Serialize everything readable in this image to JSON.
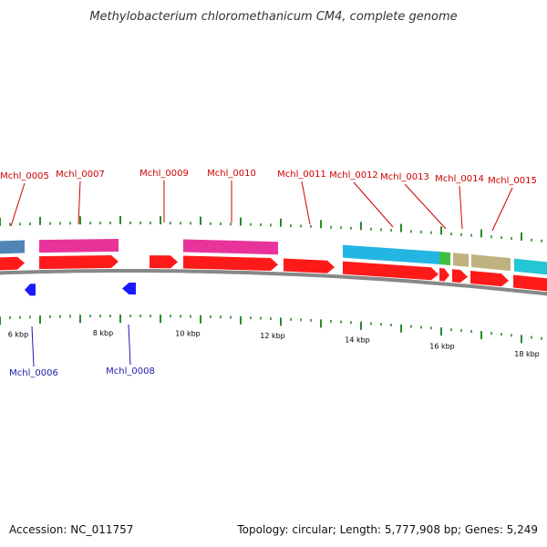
{
  "title": "Methylobacterium chloromethanicum CM4, complete genome",
  "accession_text": "Accession: NC_011757",
  "summary_text": "Topology: circular; Length: 5,777,908 bp; Genes: 5,249",
  "colors": {
    "forward_label": "#cc0000",
    "reverse_label": "#1a1aaa",
    "cds": "#ff1a1a",
    "reverse_cds": "#1a1aff",
    "backbone": "#888888",
    "tick": "#2a8a2a"
  },
  "scale_labels": [
    "6 kbp",
    "8 kbp",
    "10 kbp",
    "12 kbp",
    "14 kbp",
    "16 kbp",
    "18 kbp"
  ],
  "genes": [
    {
      "name": "Mchl_0005",
      "strand": "+",
      "category_color": "#4f86b5"
    },
    {
      "name": "Mchl_0006",
      "strand": "-",
      "category_color": ""
    },
    {
      "name": "Mchl_0007",
      "strand": "+",
      "category_color": "#e8349a"
    },
    {
      "name": "Mchl_0008",
      "strand": "-",
      "category_color": ""
    },
    {
      "name": "Mchl_0009",
      "strand": "+",
      "category_color": ""
    },
    {
      "name": "Mchl_0010",
      "strand": "+",
      "category_color": "#e8349a"
    },
    {
      "name": "Mchl_0011",
      "strand": "+",
      "category_color": ""
    },
    {
      "name": "Mchl_0012",
      "strand": "+",
      "category_color": "#23b6e3"
    },
    {
      "name": "Mchl_0013",
      "strand": "+",
      "category_color": "#3fbf3f"
    },
    {
      "name": "Mchl_0014",
      "strand": "+",
      "category_color": "#c0b280"
    },
    {
      "name": "Mchl_0015",
      "strand": "+",
      "category_color": "#c0b280"
    },
    {
      "name": "",
      "strand": "+",
      "category_color": "#23c6d3"
    }
  ]
}
